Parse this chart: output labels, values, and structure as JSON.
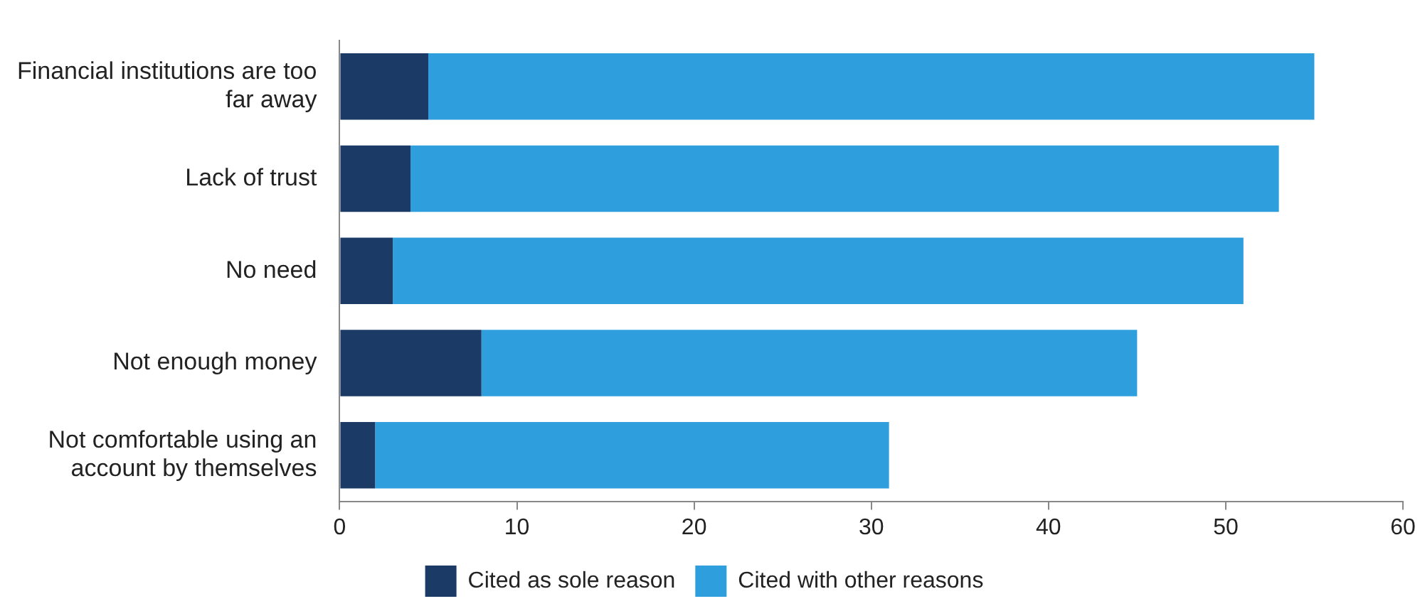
{
  "chart_data": {
    "type": "bar",
    "orientation": "horizontal",
    "stacked": true,
    "categories": [
      "Financial institutions are too far away",
      "Lack of trust",
      "No need",
      "Not enough money",
      "Not comfortable using an account by themselves"
    ],
    "series": [
      {
        "name": "Cited as sole reason",
        "color": "#1b3a66",
        "values": [
          5,
          4,
          3,
          8,
          2
        ]
      },
      {
        "name": "Cited with other reasons",
        "color": "#2e9fdc",
        "values": [
          50,
          49,
          48,
          37,
          29
        ]
      }
    ],
    "xlim": [
      0,
      60
    ],
    "xticks": [
      0,
      10,
      20,
      30,
      40,
      50,
      60
    ],
    "legend": "bottom",
    "grid": false
  }
}
